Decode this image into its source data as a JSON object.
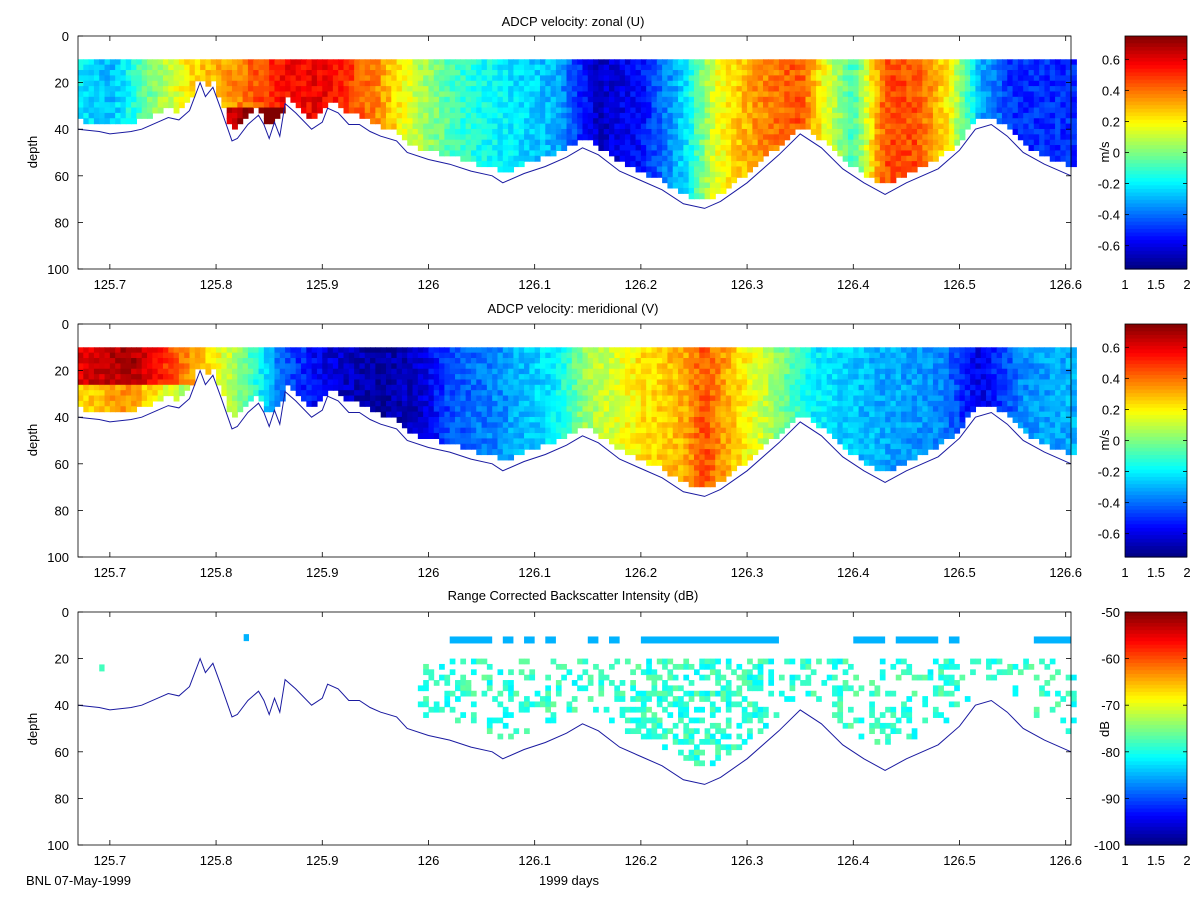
{
  "footer": {
    "left_text": "BNL 07-May-1999",
    "xlabel": "1999 days"
  },
  "chart_data": [
    {
      "type": "heatmap",
      "title": "ADCP velocity: zonal (U)",
      "xlabel": "",
      "ylabel": "depth",
      "xlim": [
        125.67,
        126.605
      ],
      "ylim": [
        100,
        0
      ],
      "x_ticks": [
        125.7,
        125.8,
        125.9,
        126,
        126.1,
        126.2,
        126.3,
        126.4,
        126.5,
        126.6
      ],
      "x_tick_labels": [
        "125.7",
        "125.8",
        "125.9",
        "126",
        "126.1",
        "126.2",
        "126.3",
        "126.4",
        "126.5",
        "126.6"
      ],
      "y_ticks": [
        0,
        20,
        40,
        60,
        80,
        100
      ],
      "y_tick_labels": [
        "0",
        "20",
        "40",
        "60",
        "80",
        "100"
      ],
      "grid": false,
      "colorbar": {
        "label": "m/s",
        "range": [
          -0.75,
          0.75
        ],
        "ticks": [
          -0.6,
          -0.4,
          -0.2,
          0,
          0.2,
          0.4,
          0.6
        ],
        "tick_labels": [
          "-0.6",
          "-0.4",
          "-0.2",
          "0",
          "0.2",
          "0.4",
          "0.6"
        ],
        "x_tick_labels": [
          "1",
          "1.5",
          "2"
        ],
        "colormap": "jet"
      },
      "top_depth": 10,
      "profile": [
        {
          "t": 125.67,
          "v": -0.2
        },
        {
          "t": 125.7,
          "v": -0.3
        },
        {
          "t": 125.74,
          "v": 0.0
        },
        {
          "t": 125.78,
          "v": 0.25
        },
        {
          "t": 125.8,
          "v": 0.3
        },
        {
          "t": 125.83,
          "v": 0.4
        },
        {
          "t": 125.86,
          "v": 0.55
        },
        {
          "t": 125.9,
          "v": 0.58
        },
        {
          "t": 125.95,
          "v": 0.38
        },
        {
          "t": 125.99,
          "v": 0.08
        },
        {
          "t": 126.03,
          "v": -0.12
        },
        {
          "t": 126.07,
          "v": -0.2
        },
        {
          "t": 126.12,
          "v": -0.3
        },
        {
          "t": 126.16,
          "v": -0.65
        },
        {
          "t": 126.2,
          "v": -0.55
        },
        {
          "t": 126.24,
          "v": -0.25
        },
        {
          "t": 126.27,
          "v": 0.15
        },
        {
          "t": 126.31,
          "v": 0.35
        },
        {
          "t": 126.35,
          "v": 0.45
        },
        {
          "t": 126.37,
          "v": 0.2
        },
        {
          "t": 126.4,
          "v": -0.1
        },
        {
          "t": 126.43,
          "v": 0.45
        },
        {
          "t": 126.46,
          "v": 0.45
        },
        {
          "t": 126.49,
          "v": 0.2
        },
        {
          "t": 126.52,
          "v": -0.3
        },
        {
          "t": 126.55,
          "v": -0.5
        },
        {
          "t": 126.605,
          "v": -0.5
        }
      ]
    },
    {
      "type": "heatmap",
      "title": "ADCP velocity: meridional (V)",
      "xlabel": "",
      "ylabel": "depth",
      "xlim": [
        125.67,
        126.605
      ],
      "ylim": [
        100,
        0
      ],
      "x_ticks": [
        125.7,
        125.8,
        125.9,
        126,
        126.1,
        126.2,
        126.3,
        126.4,
        126.5,
        126.6
      ],
      "x_tick_labels": [
        "125.7",
        "125.8",
        "125.9",
        "126",
        "126.1",
        "126.2",
        "126.3",
        "126.4",
        "126.5",
        "126.6"
      ],
      "y_ticks": [
        0,
        20,
        40,
        60,
        80,
        100
      ],
      "y_tick_labels": [
        "0",
        "20",
        "40",
        "60",
        "80",
        "100"
      ],
      "grid": false,
      "colorbar": {
        "label": "m/s",
        "range": [
          -0.75,
          0.75
        ],
        "ticks": [
          -0.6,
          -0.4,
          -0.2,
          0,
          0.2,
          0.4,
          0.6
        ],
        "tick_labels": [
          "-0.6",
          "-0.4",
          "-0.2",
          "0",
          "0.2",
          "0.4",
          "0.6"
        ],
        "x_tick_labels": [
          "1",
          "1.5",
          "2"
        ],
        "colormap": "jet"
      },
      "top_depth": 10,
      "profile": [
        {
          "t": 125.67,
          "v": 0.6
        },
        {
          "t": 125.72,
          "v": 0.7
        },
        {
          "t": 125.76,
          "v": 0.45
        },
        {
          "t": 125.8,
          "v": 0.2
        },
        {
          "t": 125.83,
          "v": -0.05
        },
        {
          "t": 125.86,
          "v": -0.4
        },
        {
          "t": 125.9,
          "v": -0.6
        },
        {
          "t": 125.95,
          "v": -0.7
        },
        {
          "t": 125.99,
          "v": -0.65
        },
        {
          "t": 126.02,
          "v": -0.45
        },
        {
          "t": 126.07,
          "v": -0.35
        },
        {
          "t": 126.12,
          "v": -0.2
        },
        {
          "t": 126.15,
          "v": 0.05
        },
        {
          "t": 126.2,
          "v": 0.22
        },
        {
          "t": 126.24,
          "v": 0.3
        },
        {
          "t": 126.26,
          "v": 0.45
        },
        {
          "t": 126.29,
          "v": 0.25
        },
        {
          "t": 126.32,
          "v": 0.08
        },
        {
          "t": 126.36,
          "v": -0.2
        },
        {
          "t": 126.42,
          "v": -0.3
        },
        {
          "t": 126.48,
          "v": -0.35
        },
        {
          "t": 126.52,
          "v": -0.6
        },
        {
          "t": 126.56,
          "v": -0.35
        },
        {
          "t": 126.605,
          "v": -0.3
        }
      ]
    },
    {
      "type": "heatmap",
      "title": "Range Corrected Backscatter Intensity (dB)",
      "xlabel": "",
      "ylabel": "depth",
      "xlim": [
        125.67,
        126.605
      ],
      "ylim": [
        100,
        0
      ],
      "x_ticks": [
        125.7,
        125.8,
        125.9,
        126,
        126.1,
        126.2,
        126.3,
        126.4,
        126.5,
        126.6
      ],
      "x_tick_labels": [
        "125.7",
        "125.8",
        "125.9",
        "126",
        "126.1",
        "126.2",
        "126.3",
        "126.4",
        "126.5",
        "126.6"
      ],
      "y_ticks": [
        0,
        20,
        40,
        60,
        80,
        100
      ],
      "y_tick_labels": [
        "0",
        "20",
        "40",
        "60",
        "80",
        "100"
      ],
      "grid": false,
      "colorbar": {
        "label": "dB",
        "range": [
          -100,
          -50
        ],
        "ticks": [
          -100,
          -90,
          -80,
          -70,
          -60,
          -50
        ],
        "tick_labels": [
          "-100",
          "-90",
          "-80",
          "-70",
          "-60",
          "-50"
        ],
        "x_tick_labels": [
          "1",
          "1.5",
          "2"
        ],
        "colormap": "jet"
      },
      "surface_band": {
        "depth": 12,
        "value": -85,
        "segments": [
          [
            126.02,
            126.06
          ],
          [
            126.07,
            126.08
          ],
          [
            126.09,
            126.1
          ],
          [
            126.11,
            126.12
          ],
          [
            126.15,
            126.16
          ],
          [
            126.17,
            126.18
          ],
          [
            126.2,
            126.33
          ],
          [
            126.4,
            126.43
          ],
          [
            126.44,
            126.48
          ],
          [
            126.49,
            126.5
          ],
          [
            126.57,
            126.605
          ]
        ],
        "isolated": [
          {
            "t": 125.826,
            "d": 11,
            "v": -85
          },
          {
            "t": 125.69,
            "d": 24,
            "v": -78
          }
        ]
      },
      "scatter_region": {
        "t_start": 125.99,
        "t_end": 126.605,
        "min_depth": 17,
        "value_range": [
          -82,
          -76
        ]
      }
    }
  ],
  "bottom_depth": [
    [
      125.67,
      40
    ],
    [
      125.69,
      41
    ],
    [
      125.7,
      42
    ],
    [
      125.72,
      41
    ],
    [
      125.73,
      40
    ],
    [
      125.745,
      37
    ],
    [
      125.755,
      35
    ],
    [
      125.765,
      36
    ],
    [
      125.775,
      32
    ],
    [
      125.785,
      20
    ],
    [
      125.79,
      26
    ],
    [
      125.797,
      22
    ],
    [
      125.805,
      32
    ],
    [
      125.815,
      45
    ],
    [
      125.82,
      44
    ],
    [
      125.83,
      38
    ],
    [
      125.84,
      34
    ],
    [
      125.845,
      38
    ],
    [
      125.85,
      44
    ],
    [
      125.855,
      37
    ],
    [
      125.86,
      43
    ],
    [
      125.865,
      29
    ],
    [
      125.875,
      33
    ],
    [
      125.89,
      40
    ],
    [
      125.9,
      37
    ],
    [
      125.905,
      31
    ],
    [
      125.915,
      33
    ],
    [
      125.925,
      38
    ],
    [
      125.935,
      38
    ],
    [
      125.945,
      41
    ],
    [
      125.955,
      43
    ],
    [
      125.97,
      45
    ],
    [
      125.98,
      50
    ],
    [
      126.0,
      53
    ],
    [
      126.02,
      55
    ],
    [
      126.04,
      58
    ],
    [
      126.06,
      60
    ],
    [
      126.07,
      63
    ],
    [
      126.09,
      59
    ],
    [
      126.11,
      56
    ],
    [
      126.13,
      52
    ],
    [
      126.145,
      48
    ],
    [
      126.16,
      51
    ],
    [
      126.18,
      58
    ],
    [
      126.2,
      62
    ],
    [
      126.22,
      66
    ],
    [
      126.24,
      72
    ],
    [
      126.26,
      74
    ],
    [
      126.275,
      71
    ],
    [
      126.3,
      63
    ],
    [
      126.33,
      51
    ],
    [
      126.35,
      42
    ],
    [
      126.37,
      48
    ],
    [
      126.39,
      57
    ],
    [
      126.41,
      63
    ],
    [
      126.43,
      68
    ],
    [
      126.45,
      63
    ],
    [
      126.48,
      57
    ],
    [
      126.5,
      49
    ],
    [
      126.515,
      40
    ],
    [
      126.53,
      38
    ],
    [
      126.545,
      43
    ],
    [
      126.56,
      50
    ],
    [
      126.58,
      55
    ],
    [
      126.605,
      60
    ]
  ]
}
